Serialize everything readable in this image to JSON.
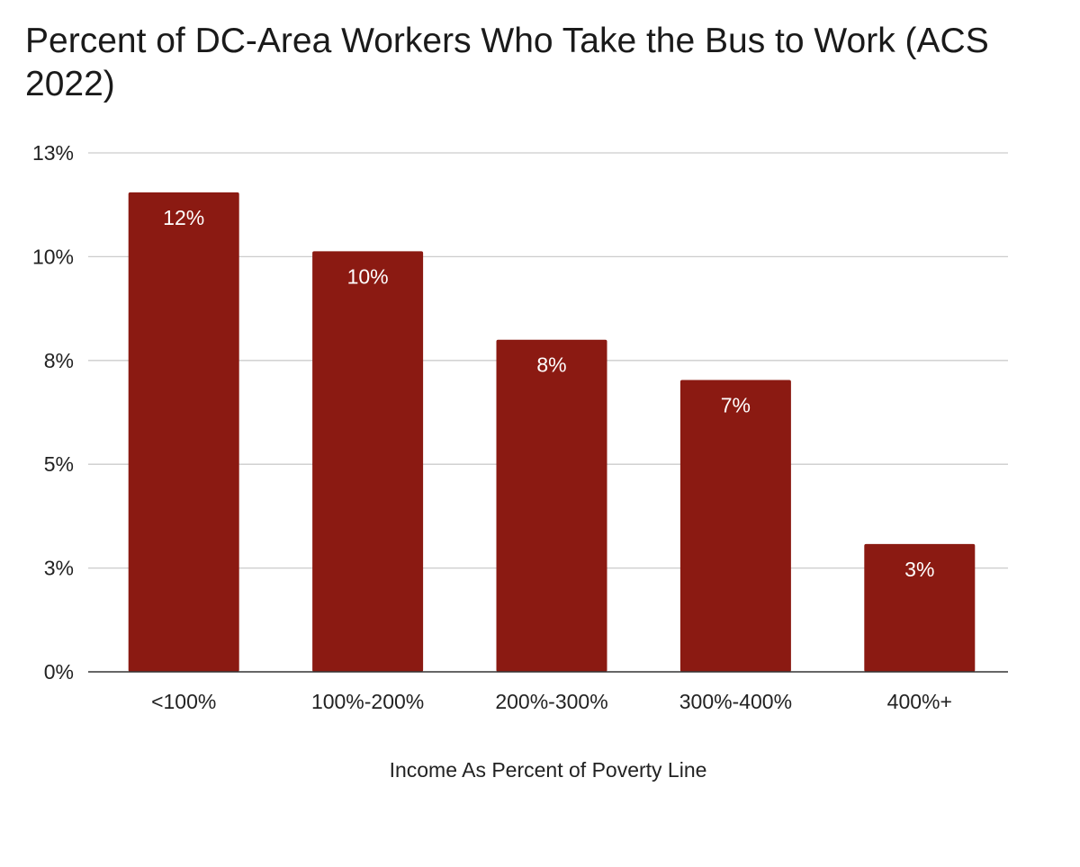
{
  "chart_data": {
    "type": "bar",
    "title": "Percent of DC-Area Workers Who Take the Bus to Work (ACS 2022)",
    "xlabel": "Income As Percent of Poverty Line",
    "ylabel": "",
    "categories": [
      "<100%",
      "100%-200%",
      "200%-300%",
      "300%-400%",
      "400%+"
    ],
    "values": [
      11.55,
      10.13,
      8.0,
      7.03,
      3.08
    ],
    "data_labels": [
      "12%",
      "10%",
      "8%",
      "7%",
      "3%"
    ],
    "ylim": [
      0,
      12.5
    ],
    "y_ticks": [
      0,
      2.5,
      5,
      7.5,
      10,
      12.5
    ],
    "y_tick_labels": [
      "0%",
      "3%",
      "5%",
      "8%",
      "10%",
      "13%"
    ],
    "grid": true,
    "legend": "none",
    "colors": {
      "bar": "#8b1a12",
      "grid": "#cccccc",
      "axis": "#333333",
      "data_label": "#ffffff"
    }
  }
}
